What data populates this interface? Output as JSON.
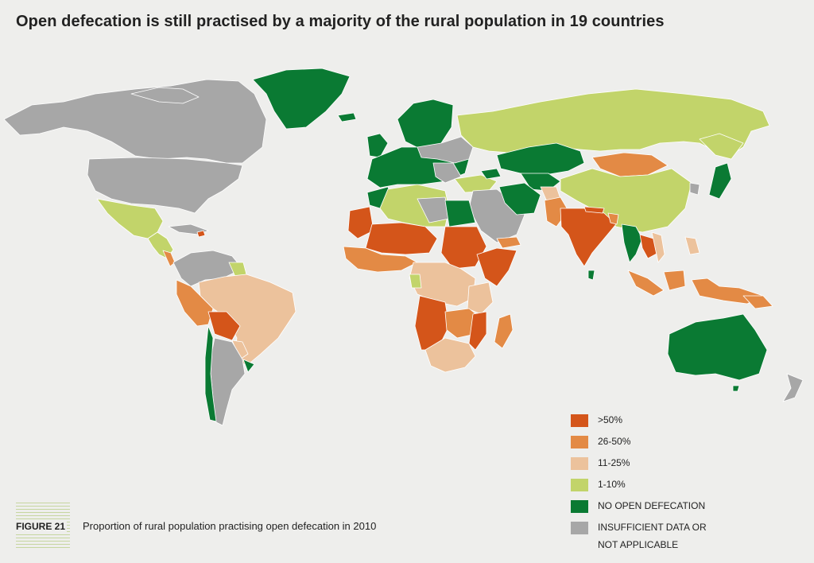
{
  "title": "Open defecation is still practised by a majority of the rural population in 19 countries",
  "figure": {
    "number": "FIGURE 21",
    "caption": "Proportion of rural population practising open defecation in 2010"
  },
  "legend": [
    {
      "label": ">50%",
      "color": "#d4551a"
    },
    {
      "label": "26-50%",
      "color": "#e38a45"
    },
    {
      "label": "11-25%",
      "color": "#ecc29c"
    },
    {
      "label": "1-10%",
      "color": "#c2d46a"
    },
    {
      "label": "NO OPEN DEFECATION",
      "color": "#0a7a33"
    },
    {
      "label": "INSUFFICIENT DATA OR",
      "label2": "NOT APPLICABLE",
      "color": "#a7a7a7"
    }
  ]
}
